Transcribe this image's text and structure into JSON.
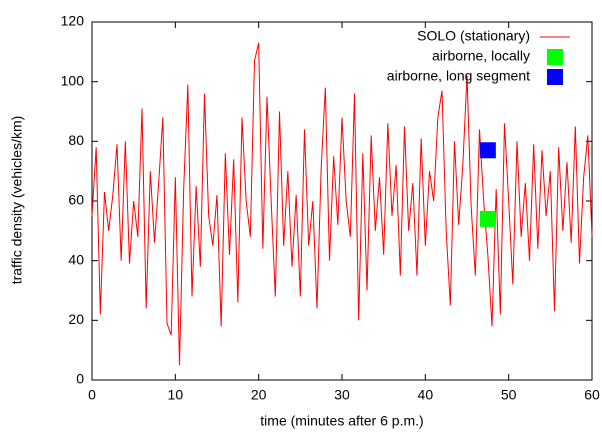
{
  "chart_data": {
    "type": "line",
    "xlabel": "time (minutes after 6 p.m.)",
    "ylabel": "traffic density (vehicles/km)",
    "xlim": [
      0,
      60
    ],
    "xticks": [
      0,
      10,
      20,
      30,
      40,
      50,
      60
    ],
    "ylim": [
      0,
      120
    ],
    "yticks": [
      0,
      20,
      40,
      60,
      80,
      100,
      120
    ],
    "legend": "top-right",
    "series": [
      {
        "name": "SOLO (stationary)",
        "color": "#ff0000",
        "type": "line",
        "x": [
          0,
          0.5,
          1,
          1.5,
          2,
          2.5,
          3,
          3.5,
          4,
          4.5,
          5,
          5.5,
          6,
          6.5,
          7,
          7.5,
          8,
          8.5,
          9,
          9.5,
          10,
          10.5,
          11,
          11.5,
          12,
          12.5,
          13,
          13.5,
          14,
          14.5,
          15,
          15.5,
          16,
          16.5,
          17,
          17.5,
          18,
          18.5,
          19,
          19.5,
          20,
          20.5,
          21,
          21.5,
          22,
          22.5,
          23,
          23.5,
          24,
          24.5,
          25,
          25.5,
          26,
          26.5,
          27,
          27.5,
          28,
          28.5,
          29,
          29.5,
          30,
          30.5,
          31,
          31.5,
          32,
          32.5,
          33,
          33.5,
          34,
          34.5,
          35,
          35.5,
          36,
          36.5,
          37,
          37.5,
          38,
          38.5,
          39,
          39.5,
          40,
          40.5,
          41,
          41.5,
          42,
          42.5,
          43,
          43.5,
          44,
          44.5,
          45,
          45.5,
          46,
          46.5,
          47,
          47.5,
          48,
          48.5,
          49,
          49.5,
          50,
          50.5,
          51,
          51.5,
          52,
          52.5,
          53,
          53.5,
          54,
          54.5,
          55,
          55.5,
          56,
          56.5,
          57,
          57.5,
          58,
          58.5,
          59,
          59.5,
          60
        ],
        "values": [
          55,
          78,
          22,
          63,
          50,
          62,
          79,
          40,
          80,
          39,
          60,
          48,
          91,
          24,
          70,
          46,
          66,
          88,
          19,
          15,
          68,
          5,
          64,
          99,
          28,
          65,
          38,
          96,
          55,
          45,
          62,
          18,
          76,
          42,
          74,
          26,
          88,
          60,
          48,
          107,
          113,
          44,
          95,
          60,
          28,
          90,
          45,
          70,
          38,
          62,
          28,
          84,
          45,
          60,
          24,
          71,
          98,
          40,
          75,
          52,
          88,
          60,
          48,
          96,
          20,
          76,
          30,
          82,
          50,
          68,
          42,
          86,
          55,
          72,
          35,
          85,
          50,
          66,
          35,
          81,
          45,
          70,
          60,
          88,
          97,
          50,
          25,
          80,
          52,
          72,
          102,
          58,
          35,
          84,
          60,
          42,
          18,
          64,
          22,
          86,
          60,
          32,
          80,
          48,
          66,
          40,
          79,
          44,
          77,
          55,
          70,
          23,
          78,
          50,
          73,
          46,
          85,
          39,
          68,
          82,
          48
        ]
      },
      {
        "name": "airborne, locally",
        "color": "#00ff00",
        "type": "scatter",
        "x": [
          47.5
        ],
        "values": [
          54
        ]
      },
      {
        "name": "airborne, long segment",
        "color": "#0000ff",
        "type": "scatter",
        "x": [
          47.5
        ],
        "values": [
          77
        ]
      }
    ]
  }
}
